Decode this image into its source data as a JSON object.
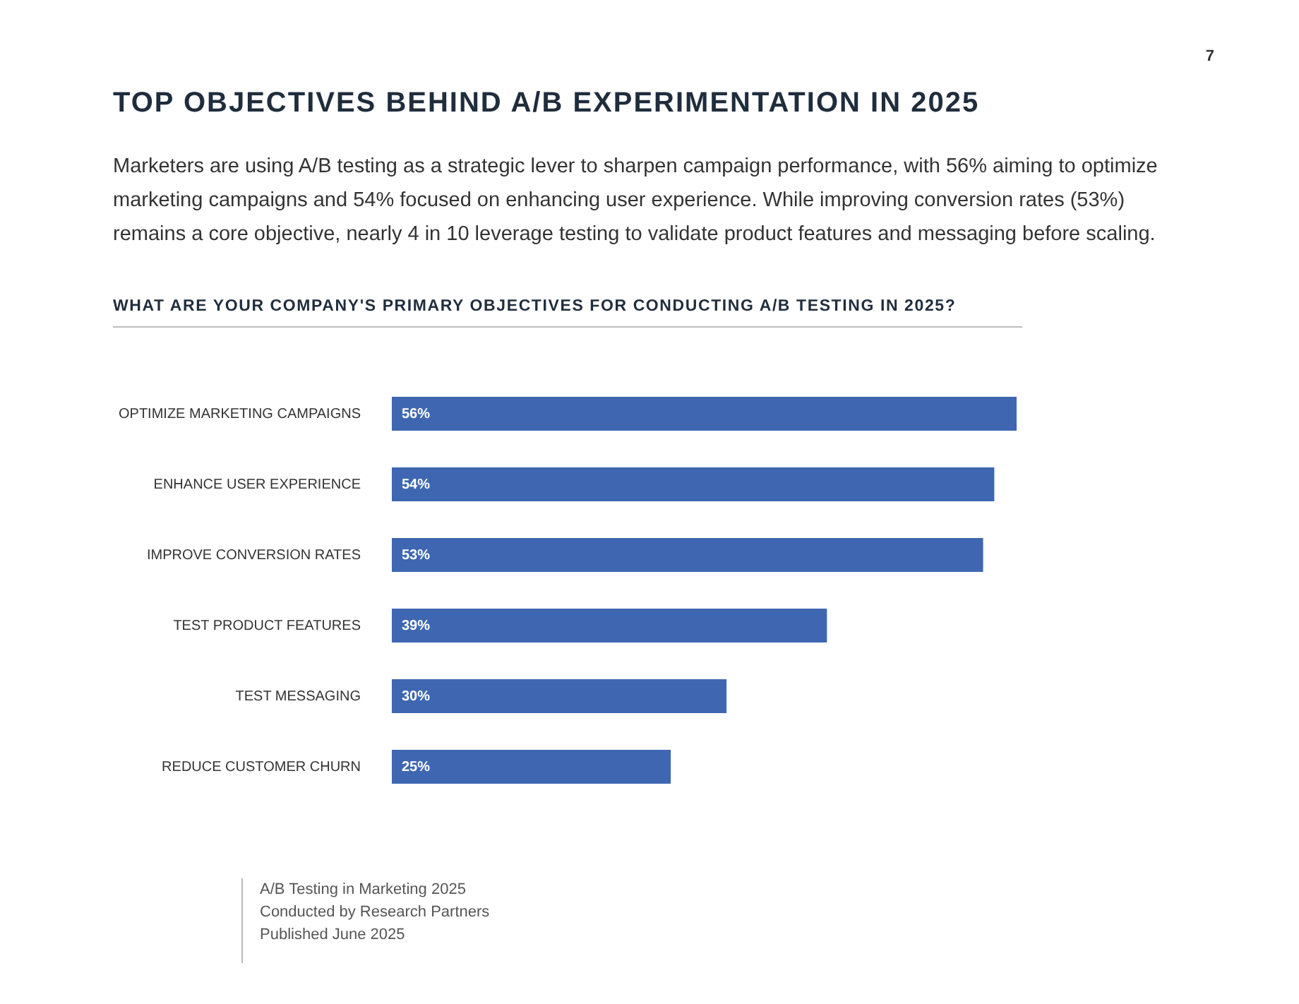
{
  "chart_data": {
    "type": "bar",
    "orientation": "horizontal",
    "title": "TOP OBJECTIVES BEHIND A/B EXPERIMENTATION IN 2025",
    "subtitle": "Marketers are using A/B testing as a strategic lever to sharpen campaign performance, with 56% aiming to optimize marketing campaigns and 54% focused on enhancing user experience. While improving conversion rates (53%) remains a core objective, nearly 4 in 10 leverage testing to validate product features and messaging before scaling.",
    "annotations": [
      "WHAT ARE YOUR COMPANY'S PRIMARY OBJECTIVES FOR CONDUCTING A/B TESTING IN 2025?",
      "7",
      "A/B Testing in Marketing 2025",
      "Conducted by Research Partners",
      "Published June 2025"
    ],
    "categories": [
      "OPTIMIZE MARKETING CAMPAIGNS",
      "ENHANCE USER EXPERIENCE",
      "IMPROVE CONVERSION RATES",
      "TEST PRODUCT FEATURES",
      "TEST MESSAGING",
      "REDUCE CUSTOMER CHURN"
    ],
    "values": [
      56,
      54,
      53,
      39,
      30,
      25
    ],
    "value_labels": [
      "56%",
      "54%",
      "53%",
      "39%",
      "30%",
      "25%"
    ],
    "color": "#3f67b1",
    "tick_labels": "y"
  }
}
